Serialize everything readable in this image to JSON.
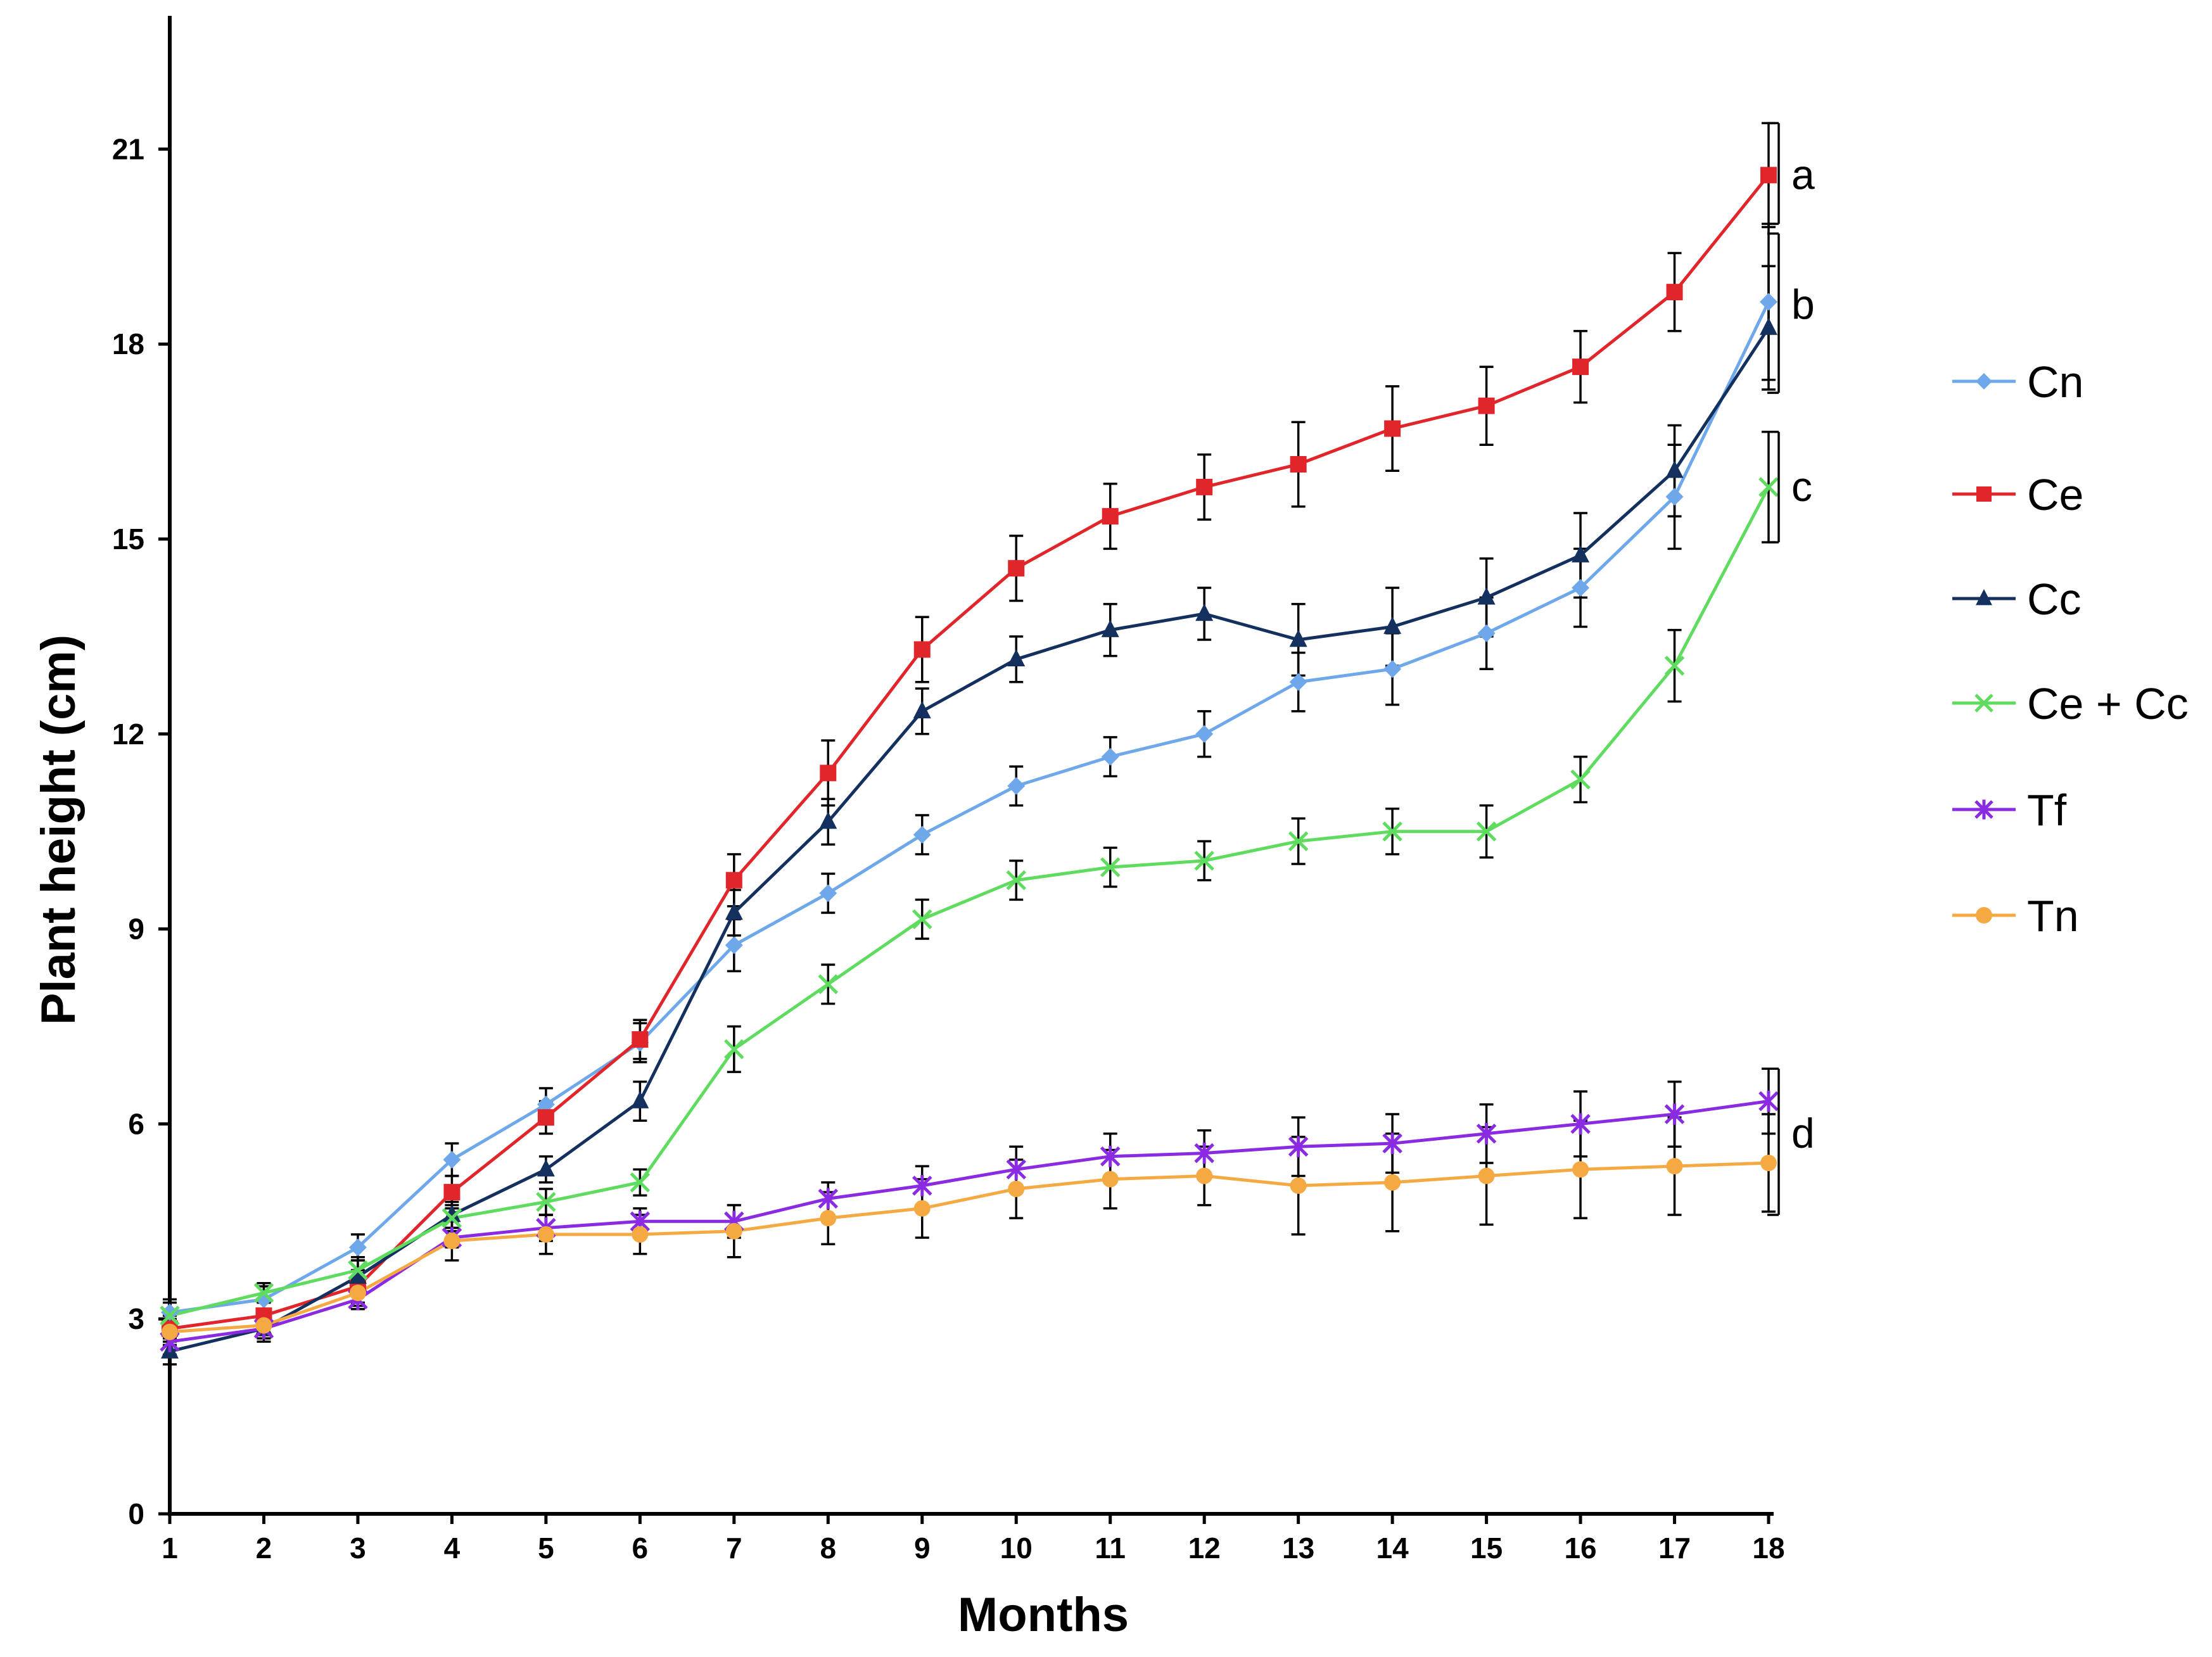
{
  "chart_data": {
    "type": "line",
    "title": "",
    "xlabel": "Months",
    "ylabel": "Plant height (cm)",
    "x": [
      1,
      2,
      3,
      4,
      5,
      6,
      7,
      8,
      9,
      10,
      11,
      12,
      13,
      14,
      15,
      16,
      17,
      18
    ],
    "xlim": [
      1,
      18
    ],
    "ylim": [
      0,
      23
    ],
    "yticks": [
      0,
      3,
      6,
      9,
      12,
      15,
      18,
      21
    ],
    "grid": false,
    "legend_position": "right",
    "series": [
      {
        "name": "Cn",
        "color": "#6ea8ea",
        "marker": "diamond",
        "values": [
          3.1,
          3.3,
          4.1,
          5.45,
          6.3,
          7.25,
          8.75,
          9.55,
          10.45,
          11.2,
          11.65,
          12.0,
          12.8,
          13.0,
          13.55,
          14.25,
          15.65,
          18.65
        ],
        "errors": [
          0.2,
          0.2,
          0.2,
          0.25,
          0.25,
          0.3,
          0.4,
          0.3,
          0.3,
          0.3,
          0.3,
          0.35,
          0.45,
          0.55,
          0.55,
          0.6,
          0.8,
          1.2
        ]
      },
      {
        "name": "Ce",
        "color": "#e0262b",
        "marker": "square",
        "values": [
          2.85,
          3.05,
          3.5,
          4.95,
          6.1,
          7.3,
          9.75,
          11.4,
          13.3,
          14.55,
          15.35,
          15.8,
          16.15,
          16.7,
          17.05,
          17.65,
          18.8,
          20.6
        ],
        "errors": [
          0.2,
          0.2,
          0.25,
          0.25,
          0.25,
          0.3,
          0.4,
          0.5,
          0.5,
          0.5,
          0.5,
          0.5,
          0.65,
          0.65,
          0.6,
          0.55,
          0.6,
          0.8
        ]
      },
      {
        "name": "Cc",
        "color": "#13305e",
        "marker": "triangle",
        "values": [
          2.5,
          2.85,
          3.65,
          4.6,
          5.3,
          6.35,
          9.25,
          10.65,
          12.35,
          13.15,
          13.6,
          13.85,
          13.45,
          13.65,
          14.1,
          14.75,
          16.05,
          18.25
        ],
        "errors": [
          0.2,
          0.2,
          0.25,
          0.2,
          0.2,
          0.3,
          0.35,
          0.35,
          0.35,
          0.35,
          0.4,
          0.4,
          0.55,
          0.6,
          0.6,
          0.65,
          0.7,
          0.95
        ]
      },
      {
        "name": "Ce + Cc",
        "color": "#5fdc5f",
        "marker": "x",
        "values": [
          3.05,
          3.4,
          3.75,
          4.55,
          4.8,
          5.1,
          7.15,
          8.15,
          9.15,
          9.75,
          9.95,
          10.05,
          10.35,
          10.5,
          10.5,
          11.3,
          13.05,
          15.8
        ],
        "errors": [
          0.2,
          0.15,
          0.2,
          0.2,
          0.2,
          0.2,
          0.35,
          0.3,
          0.3,
          0.3,
          0.3,
          0.3,
          0.35,
          0.35,
          0.4,
          0.35,
          0.55,
          0.85
        ]
      },
      {
        "name": "Tf",
        "color": "#8a2be2",
        "marker": "star",
        "values": [
          2.65,
          2.85,
          3.3,
          4.25,
          4.4,
          4.5,
          4.5,
          4.85,
          5.05,
          5.3,
          5.5,
          5.55,
          5.65,
          5.7,
          5.85,
          6.0,
          6.15,
          6.35
        ],
        "errors": [
          0.2,
          0.15,
          0.15,
          0.15,
          0.2,
          0.2,
          0.25,
          0.25,
          0.3,
          0.35,
          0.35,
          0.35,
          0.45,
          0.45,
          0.45,
          0.5,
          0.5,
          0.5
        ]
      },
      {
        "name": "Tn",
        "color": "#f4a942",
        "marker": "circle",
        "values": [
          2.8,
          2.9,
          3.4,
          4.2,
          4.3,
          4.3,
          4.35,
          4.55,
          4.7,
          5.0,
          5.15,
          5.2,
          5.05,
          5.1,
          5.2,
          5.3,
          5.35,
          5.4
        ],
        "errors": [
          0.2,
          0.15,
          0.2,
          0.3,
          0.3,
          0.3,
          0.4,
          0.4,
          0.45,
          0.45,
          0.45,
          0.45,
          0.75,
          0.75,
          0.75,
          0.75,
          0.75,
          0.75
        ]
      }
    ],
    "group_letters": [
      {
        "text": "a",
        "y": 20.6
      },
      {
        "text": "b",
        "y": 18.6
      },
      {
        "text": "c",
        "y": 15.8
      },
      {
        "text": "d",
        "y": 5.85
      }
    ],
    "brackets": [
      {
        "from": 19.85,
        "to": 21.4
      },
      {
        "from": 17.25,
        "to": 19.7
      },
      {
        "from": 14.95,
        "to": 16.65
      },
      {
        "from": 4.6,
        "to": 6.85
      }
    ]
  }
}
